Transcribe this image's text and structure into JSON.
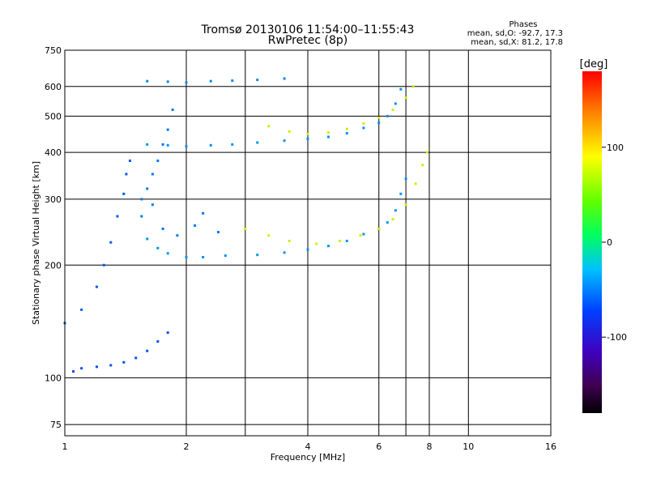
{
  "title": "Tromsø 20130106 11:54:00–11:55:43",
  "subtitle": "RwPretec (8p)",
  "phase_box": {
    "heading": "Phases",
    "line1": "mean, sd,O: -92.7, 17.3",
    "line2": "mean, sd,X:  81.2, 17.8"
  },
  "colorbar": {
    "label": "[deg]",
    "tick_labels": [
      "100",
      "0",
      "-100"
    ],
    "tick_values": [
      100,
      0,
      -100
    ],
    "range": [
      -180,
      180
    ]
  },
  "colors": {
    "o_trace": "#2a26d8",
    "x_trace": "#c8e646",
    "frame": "#000000"
  },
  "chart_data": {
    "type": "scatter",
    "xlabel": "Frequency [MHz]",
    "ylabel": "Stationary phase Virtual Height [km]",
    "x_scale": "log",
    "y_scale": "log",
    "xlim": [
      1,
      16
    ],
    "ylim": [
      70,
      750
    ],
    "x_ticks": [
      1,
      2,
      4,
      6,
      8,
      10,
      16
    ],
    "x_tick_labels": [
      "1",
      "2",
      "4",
      "6",
      "8",
      "10",
      "16"
    ],
    "x_extra_gridlines": [
      2.8,
      7
    ],
    "y_ticks": [
      75,
      100,
      200,
      300,
      400,
      500,
      600,
      750
    ],
    "y_tick_labels": [
      "75",
      "100",
      "200",
      "300",
      "400",
      "500",
      "600",
      "750"
    ],
    "grid": true,
    "color_by": "phase (deg)",
    "series": [
      {
        "mode": "O",
        "phase": -90,
        "points": [
          [
            1.6,
            235
          ],
          [
            1.7,
            222
          ],
          [
            1.8,
            215
          ],
          [
            2.0,
            210
          ],
          [
            2.2,
            210
          ],
          [
            2.5,
            212
          ],
          [
            3.0,
            213
          ],
          [
            3.5,
            216
          ],
          [
            4.0,
            220
          ],
          [
            4.5,
            225
          ],
          [
            5.0,
            232
          ],
          [
            5.5,
            242
          ],
          [
            6.0,
            250
          ],
          [
            6.3,
            260
          ],
          [
            6.6,
            280
          ],
          [
            6.8,
            310
          ],
          [
            7.0,
            340
          ]
        ]
      },
      {
        "mode": "O",
        "phase": -92,
        "points": [
          [
            1.6,
            420
          ],
          [
            1.8,
            418
          ],
          [
            2.0,
            415
          ],
          [
            2.3,
            418
          ],
          [
            2.6,
            420
          ],
          [
            3.0,
            425
          ],
          [
            3.5,
            430
          ],
          [
            4.0,
            435
          ],
          [
            4.5,
            440
          ],
          [
            5.0,
            450
          ],
          [
            5.5,
            465
          ],
          [
            6.0,
            480
          ],
          [
            6.3,
            500
          ],
          [
            6.6,
            540
          ],
          [
            6.8,
            590
          ]
        ]
      },
      {
        "mode": "O",
        "phase": -95,
        "points": [
          [
            1.6,
            620
          ],
          [
            1.8,
            618
          ],
          [
            2.0,
            615
          ],
          [
            2.3,
            620
          ],
          [
            2.6,
            622
          ],
          [
            3.0,
            625
          ],
          [
            3.5,
            630
          ]
        ]
      },
      {
        "mode": "X",
        "phase": 90,
        "points": [
          [
            2.8,
            250
          ],
          [
            3.2,
            240
          ],
          [
            3.6,
            232
          ],
          [
            4.2,
            228
          ],
          [
            4.8,
            232
          ],
          [
            5.4,
            240
          ],
          [
            6.0,
            250
          ],
          [
            6.5,
            265
          ],
          [
            7.0,
            290
          ],
          [
            7.4,
            330
          ],
          [
            7.7,
            370
          ],
          [
            7.9,
            400
          ]
        ]
      },
      {
        "mode": "X",
        "phase": 88,
        "points": [
          [
            3.2,
            470
          ],
          [
            3.6,
            455
          ],
          [
            4.0,
            448
          ],
          [
            4.5,
            452
          ],
          [
            5.0,
            462
          ],
          [
            5.5,
            478
          ],
          [
            6.0,
            495
          ],
          [
            6.5,
            520
          ],
          [
            7.0,
            560
          ],
          [
            7.3,
            600
          ]
        ]
      },
      {
        "mode": "O",
        "phase": -110,
        "points": [
          [
            1.0,
            140
          ],
          [
            1.1,
            152
          ],
          [
            1.2,
            175
          ],
          [
            1.25,
            200
          ],
          [
            1.3,
            230
          ],
          [
            1.35,
            270
          ],
          [
            1.4,
            310
          ],
          [
            1.42,
            350
          ],
          [
            1.45,
            380
          ]
        ]
      },
      {
        "mode": "O",
        "phase": -115,
        "points": [
          [
            1.05,
            104
          ],
          [
            1.1,
            106
          ],
          [
            1.2,
            107
          ],
          [
            1.3,
            108
          ],
          [
            1.4,
            110
          ],
          [
            1.5,
            113
          ],
          [
            1.6,
            118
          ],
          [
            1.7,
            125
          ],
          [
            1.8,
            132
          ]
        ]
      },
      {
        "mode": "O",
        "phase": -100,
        "points": [
          [
            1.55,
            300
          ],
          [
            1.6,
            320
          ],
          [
            1.65,
            350
          ],
          [
            1.7,
            380
          ],
          [
            1.75,
            420
          ],
          [
            1.8,
            460
          ],
          [
            1.85,
            520
          ],
          [
            1.55,
            270
          ],
          [
            1.65,
            290
          ],
          [
            1.75,
            250
          ],
          [
            1.9,
            240
          ],
          [
            2.1,
            255
          ],
          [
            2.4,
            245
          ],
          [
            2.2,
            275
          ]
        ]
      }
    ]
  }
}
